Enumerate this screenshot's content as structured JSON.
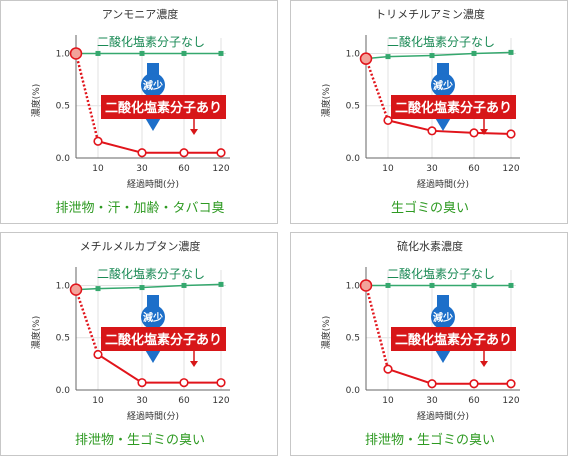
{
  "colors": {
    "without_series": "#35a86e",
    "with_series": "#e1141b",
    "arrow_blue": "#1d6fc9",
    "caption_green": "#2e9a22",
    "label_red": "#d71618"
  },
  "chart_data": [
    {
      "type": "line",
      "title": "アンモニア濃度",
      "xlabel": "経過時間(分)",
      "ylabel": "濃度(%)",
      "x": [
        0,
        10,
        30,
        60,
        120
      ],
      "xticks": [
        "10",
        "30",
        "60",
        "120"
      ],
      "yticks": [
        "0.0",
        "0.5",
        "1.0"
      ],
      "ylim": [
        0,
        1.1
      ],
      "series": [
        {
          "name": "二酸化塩素分子なし",
          "values": [
            1.0,
            1.0,
            1.0,
            1.0,
            1.0
          ]
        },
        {
          "name": "二酸化塩素分子あり",
          "values": [
            1.0,
            0.16,
            0.05,
            0.05,
            0.05
          ]
        }
      ],
      "arrow_label": "減少",
      "caption": "排泄物・汗・加齢・タバコ臭"
    },
    {
      "type": "line",
      "title": "トリメチルアミン濃度",
      "xlabel": "経過時間(分)",
      "ylabel": "濃度(%)",
      "x": [
        0,
        10,
        30,
        60,
        120
      ],
      "xticks": [
        "10",
        "30",
        "60",
        "120"
      ],
      "yticks": [
        "0.0",
        "0.5",
        "1.0"
      ],
      "ylim": [
        0,
        1.1
      ],
      "series": [
        {
          "name": "二酸化塩素分子なし",
          "values": [
            0.95,
            0.97,
            0.98,
            1.0,
            1.01
          ]
        },
        {
          "name": "二酸化塩素分子あり",
          "values": [
            0.95,
            0.36,
            0.26,
            0.24,
            0.23
          ]
        }
      ],
      "arrow_label": "減少",
      "caption": "生ゴミの臭い"
    },
    {
      "type": "line",
      "title": "メチルメルカプタン濃度",
      "xlabel": "経過時間(分)",
      "ylabel": "濃度(%)",
      "x": [
        0,
        10,
        30,
        60,
        120
      ],
      "xticks": [
        "10",
        "30",
        "60",
        "120"
      ],
      "yticks": [
        "0.0",
        "0.5",
        "1.0"
      ],
      "ylim": [
        0,
        1.1
      ],
      "series": [
        {
          "name": "二酸化塩素分子なし",
          "values": [
            0.96,
            0.97,
            0.98,
            1.0,
            1.01
          ]
        },
        {
          "name": "二酸化塩素分子あり",
          "values": [
            0.96,
            0.34,
            0.07,
            0.07,
            0.07
          ]
        }
      ],
      "arrow_label": "減少",
      "caption": "排泄物・生ゴミの臭い"
    },
    {
      "type": "line",
      "title": "硫化水素濃度",
      "xlabel": "経過時間(分)",
      "ylabel": "濃度(%)",
      "x": [
        0,
        10,
        30,
        60,
        120
      ],
      "xticks": [
        "10",
        "30",
        "60",
        "120"
      ],
      "yticks": [
        "0.0",
        "0.5",
        "1.0"
      ],
      "ylim": [
        0,
        1.1
      ],
      "series": [
        {
          "name": "二酸化塩素分子なし",
          "values": [
            1.0,
            1.0,
            1.0,
            1.0,
            1.0
          ]
        },
        {
          "name": "二酸化塩素分子あり",
          "values": [
            1.0,
            0.2,
            0.06,
            0.06,
            0.06
          ]
        }
      ],
      "arrow_label": "減少",
      "caption": "排泄物・生ゴミの臭い"
    }
  ]
}
